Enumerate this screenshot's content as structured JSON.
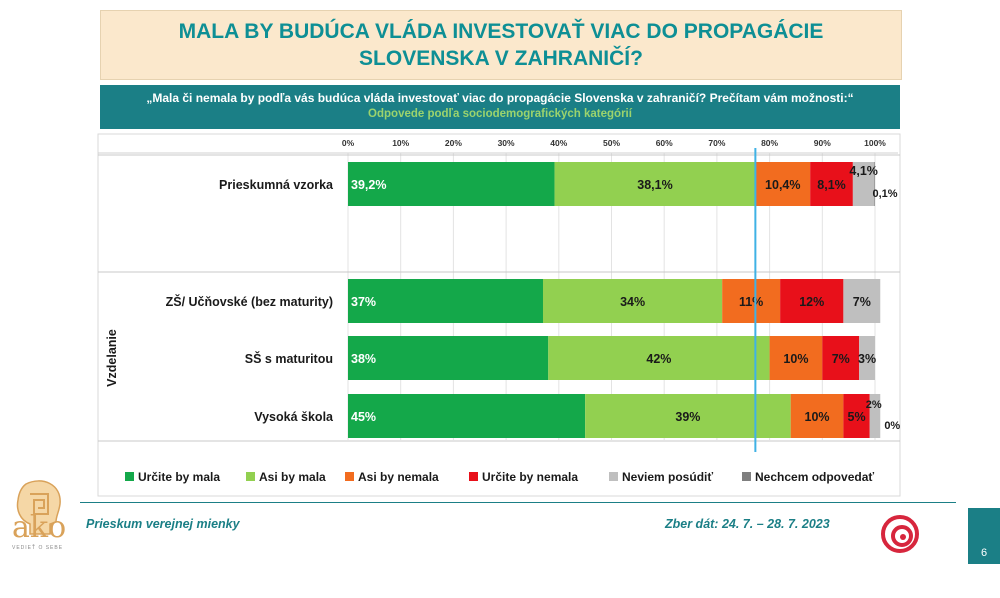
{
  "title": "MALA BY BUDÚCA VLÁDA INVESTOVAŤ VIAC DO PROPAGÁCIE SLOVENSKA V ZAHRANIČÍ?",
  "question": "„Mala či nemala by podľa vás budúca vláda investovať viac do propagácie Slovenska v zahraničí? Prečítam vám možnosti:“",
  "subtitle": "Odpovede podľa sociodemografických kategórií",
  "colors": {
    "green_dark": "#14a84a",
    "green_light": "#92d050",
    "orange": "#f26c1f",
    "red": "#e8101a",
    "grey_light": "#bfbfbf",
    "grey_dark": "#7f7f7f",
    "accent": "#1b7f86",
    "marker": "#3fb2e5"
  },
  "chart_data": {
    "type": "bar",
    "orientation": "horizontal",
    "stacked": true,
    "xlim": [
      0,
      100
    ],
    "ticks": [
      "0%",
      "10%",
      "20%",
      "30%",
      "40%",
      "50%",
      "60%",
      "70%",
      "80%",
      "90%",
      "100%"
    ],
    "tick_values": [
      0,
      10,
      20,
      30,
      40,
      50,
      60,
      70,
      80,
      90,
      100
    ],
    "group_label": "Vzdelanie",
    "reference_line": 77.3,
    "legend": [
      "Určite by mala",
      "Asi by mala",
      "Asi by nemala",
      "Určite by nemala",
      "Neviem posúdiť",
      "Nechcem odpovedať"
    ],
    "rows": [
      {
        "name": "Prieskumná vzorka",
        "values": [
          39.2,
          38.1,
          10.4,
          8.1,
          4.1,
          0.1
        ],
        "labels": [
          "39,2%",
          "38,1%",
          "10,4%",
          "8,1%",
          "4,1%",
          "0,1%"
        ]
      },
      {
        "name": "ZŠ/ Učňovské (bez maturity)",
        "values": [
          37,
          34,
          11,
          12,
          7,
          0
        ],
        "labels": [
          "37%",
          "34%",
          "11%",
          "12%",
          "7%",
          ""
        ]
      },
      {
        "name": "SŠ s maturitou",
        "values": [
          38,
          42,
          10,
          7,
          3,
          0
        ],
        "labels": [
          "38%",
          "42%",
          "10%",
          "7%",
          "3%",
          ""
        ]
      },
      {
        "name": "Vysoká škola",
        "values": [
          45,
          39,
          10,
          5,
          2,
          0
        ],
        "labels": [
          "45%",
          "39%",
          "10%",
          "5%",
          "2%",
          "0%"
        ]
      }
    ]
  },
  "footer": {
    "left": "Prieskum verejnej mienky",
    "right": "Zber dát: 24. 7. – 28. 7. 2023",
    "page": "6"
  },
  "logo": {
    "text": "ako",
    "tagline": "VEDIEŤ O SEBE"
  }
}
